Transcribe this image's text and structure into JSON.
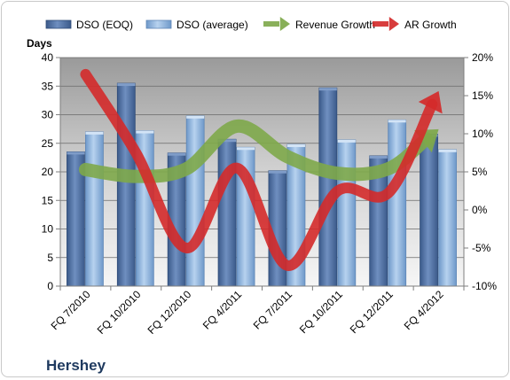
{
  "chart_data": {
    "type": "bar+line",
    "title": "Hershey",
    "categories": [
      "FQ 7/2010",
      "FQ 10/2010",
      "FQ 12/2010",
      "FQ 4/2011",
      "FQ 7/2011",
      "FQ 10/2011",
      "FQ 12/2011",
      "FQ 4/2012"
    ],
    "y_left": {
      "label": "Days",
      "range": [
        0,
        40
      ],
      "ticks": [
        0,
        5,
        10,
        15,
        20,
        25,
        30,
        35,
        40
      ]
    },
    "y_right": {
      "range": [
        -10,
        20
      ],
      "ticks": [
        -10,
        -5,
        0,
        5,
        10,
        15,
        20
      ],
      "tick_labels": [
        "-10%",
        "-5%",
        "0%",
        "5%",
        "10%",
        "15%",
        "20%"
      ]
    },
    "bar_series": [
      {
        "name": "DSO (EOQ)",
        "color": "#4f6f9f",
        "values": [
          23.5,
          35.5,
          23.3,
          25.7,
          20.2,
          34.7,
          22.8,
          26.6
        ]
      },
      {
        "name": "DSO (average)",
        "color": "#8fb4dd",
        "values": [
          27.0,
          27.2,
          29.8,
          24.3,
          24.8,
          25.6,
          29.1,
          23.9
        ]
      }
    ],
    "line_series": [
      {
        "name": "Revenue Growth",
        "color": "#7ea84a",
        "unit": "%",
        "values": [
          5.3,
          4.4,
          5.4,
          11.0,
          7.0,
          4.8,
          5.4,
          10.6
        ]
      },
      {
        "name": "AR Growth",
        "color": "#d42a2a",
        "unit": "%",
        "values": [
          17.8,
          7.5,
          -5.0,
          5.5,
          -7.3,
          2.5,
          2.2,
          15.6
        ]
      }
    ],
    "grid": "horizontal",
    "legend": "top"
  }
}
